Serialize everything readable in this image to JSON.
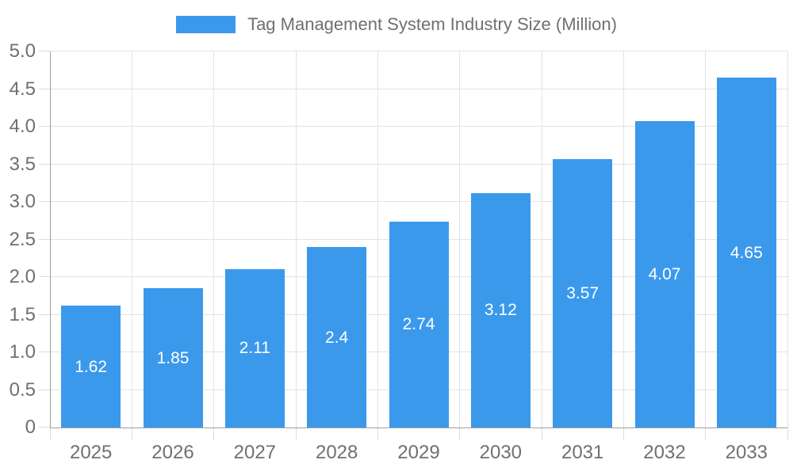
{
  "legend": {
    "label": "Tag Management System Industry Size (Million)"
  },
  "chart_data": {
    "type": "bar",
    "title": "Tag Management System Industry Size (Million)",
    "categories": [
      "2025",
      "2026",
      "2027",
      "2028",
      "2029",
      "2030",
      "2031",
      "2032",
      "2033"
    ],
    "values": [
      1.62,
      1.85,
      2.11,
      2.4,
      2.74,
      3.12,
      3.57,
      4.07,
      4.65
    ],
    "value_labels": [
      "1.62",
      "1.85",
      "2.11",
      "2.4",
      "2.74",
      "3.12",
      "3.57",
      "4.07",
      "4.65"
    ],
    "series_name": "Tag Management System Industry Size (Million)",
    "xlabel": "",
    "ylabel": "",
    "ylim": [
      0,
      5.0
    ],
    "ytick_step": 0.5,
    "ytick_labels": [
      "0",
      "0.5",
      "1.0",
      "1.5",
      "2.0",
      "2.5",
      "3.0",
      "3.5",
      "4.0",
      "4.5",
      "5.0"
    ],
    "grid": true,
    "legend_position": "top",
    "colors": {
      "bar": "#3B99EC",
      "grid": "#E3E3E3",
      "axis": "#9E9E9E",
      "tick": "#DBDBDB",
      "label": "#707070",
      "value_label": "#FFFFFF"
    }
  }
}
